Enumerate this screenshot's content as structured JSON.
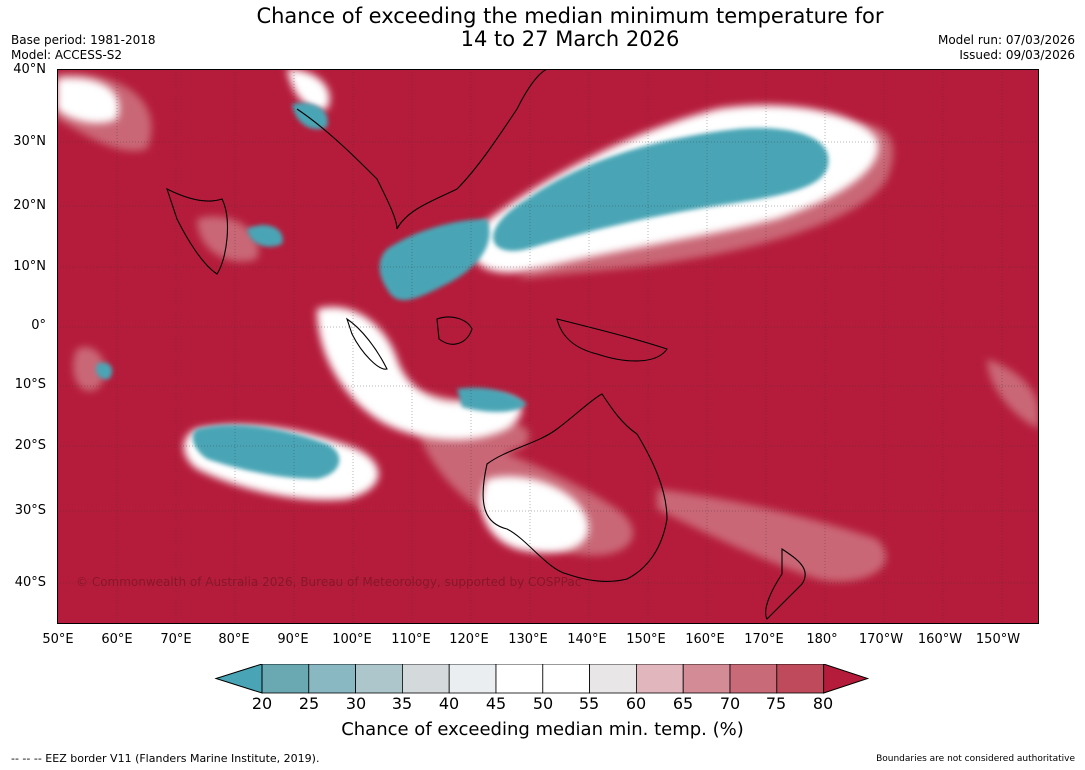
{
  "title": {
    "line1": "Chance of exceeding the median minimum temperature for",
    "line2": "14 to 27 March 2026"
  },
  "meta": {
    "base_period": "Base period: 1981-2018",
    "model": "Model: ACCESS-S2",
    "model_run": "Model run: 07/03/2026",
    "issued": "Issued: 09/03/2026"
  },
  "map": {
    "copyright": "© Commonwealth of Australia 2026, Bureau of Meteorology, supported by COSPPac",
    "lat_labels": [
      "40°N",
      "30°N",
      "20°N",
      "10°N",
      "0°",
      "10°S",
      "20°S",
      "30°S",
      "40°S"
    ],
    "lon_labels": [
      "50°E",
      "60°E",
      "70°E",
      "80°E",
      "90°E",
      "100°E",
      "110°E",
      "120°E",
      "130°E",
      "140°E",
      "150°E",
      "160°E",
      "170°E",
      "180°",
      "170°W",
      "160°W",
      "150°W"
    ],
    "background_color": "#b51c3b"
  },
  "colorbar": {
    "ticks": [
      "20",
      "25",
      "30",
      "35",
      "40",
      "45",
      "50",
      "55",
      "60",
      "65",
      "70",
      "75",
      "80"
    ],
    "colors": [
      "#49a5b5",
      "#6aa8b2",
      "#89b8c2",
      "#adc6cb",
      "#d4d9dc",
      "#ebeef0",
      "#ffffff",
      "#ffffff",
      "#e9e6e7",
      "#e1b6bd",
      "#d38b96",
      "#c96a78",
      "#be4a5b",
      "#b51c3b"
    ],
    "title": "Chance of exceeding median min. temp. (%)"
  },
  "footer": {
    "eez_note": "--  --  -- EEZ border V11 (Flanders Marine Institute, 2019).",
    "authoritative_note": "Boundaries are not considered authoritative"
  }
}
